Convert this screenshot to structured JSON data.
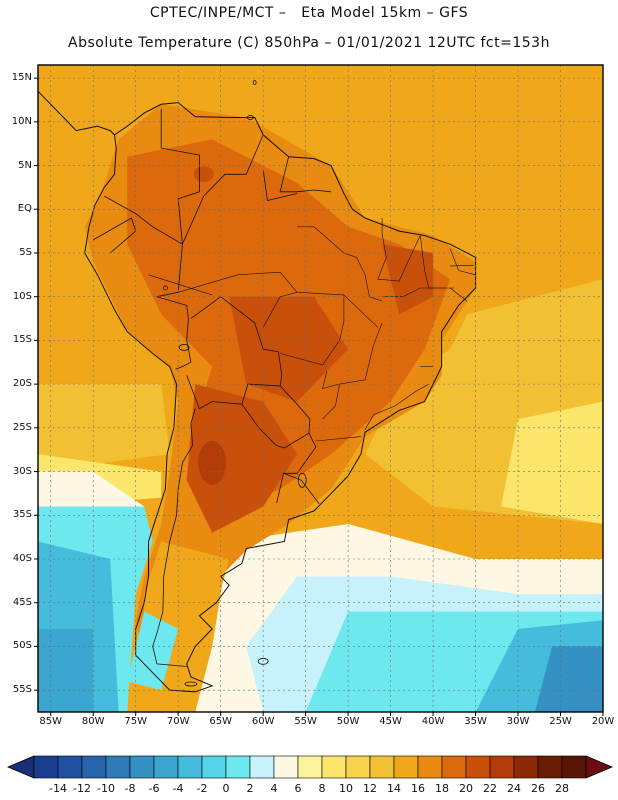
{
  "header": {
    "line1": "CPTEC/INPE/MCT –   Eta Model 15km – GFS",
    "line2": "Absolute Temperature (C) 850hPa – 01/01/2021 12UTC fct=153h"
  },
  "map": {
    "lat_labels": [
      "15N",
      "10N",
      "5N",
      "EQ",
      "5S",
      "10S",
      "15S",
      "20S",
      "25S",
      "30S",
      "35S",
      "40S",
      "45S",
      "50S",
      "55S"
    ],
    "lon_labels": [
      "85W",
      "80W",
      "75W",
      "70W",
      "65W",
      "60W",
      "55W",
      "50W",
      "45W",
      "40W",
      "35W",
      "30W",
      "25W",
      "20W"
    ],
    "lat_values": [
      15,
      10,
      5,
      0,
      -5,
      -10,
      -15,
      -20,
      -25,
      -30,
      -35,
      -40,
      -45,
      -50,
      -55
    ],
    "lon_values": [
      -85,
      -80,
      -75,
      -70,
      -65,
      -60,
      -55,
      -50,
      -45,
      -40,
      -35,
      -30,
      -25,
      -20
    ],
    "extent": {
      "lon_min": -86.5,
      "lon_max": -20,
      "lat_min": -57.5,
      "lat_max": 16.5
    }
  },
  "colorbar": {
    "labels": [
      "-14",
      "-12",
      "-10",
      "-8",
      "-6",
      "-4",
      "-2",
      "0",
      "2",
      "4",
      "6",
      "8",
      "10",
      "12",
      "14",
      "16",
      "18",
      "20",
      "22",
      "24",
      "26",
      "28"
    ],
    "colors": [
      "#1a3d8f",
      "#21509f",
      "#2864ab",
      "#2f7ab8",
      "#3590c4",
      "#3ba7d0",
      "#45bcdc",
      "#55d2e6",
      "#6ee8ef",
      "#c8f2fb",
      "#fdf7e3",
      "#fdf39a",
      "#fbe56b",
      "#f7d34d",
      "#f2c033",
      "#f0a81a",
      "#e88b10",
      "#dc6a0c",
      "#c9500a",
      "#b33c08",
      "#8e2906",
      "#6a1d05",
      "#5a1405"
    ],
    "under_color": "#1a2f78",
    "over_color": "#6a0e14"
  }
}
